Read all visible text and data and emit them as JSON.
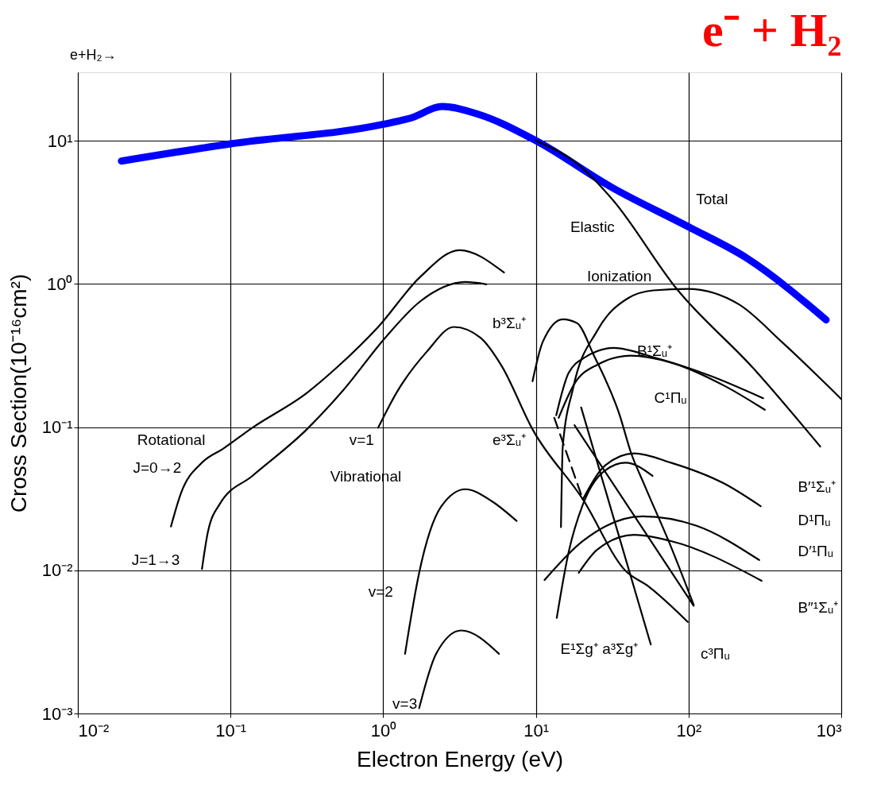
{
  "chart_data": {
    "type": "line",
    "title": "e⁻ + H₂",
    "xlabel": "Electron Energy (eV)",
    "ylabel": "Cross Section(10⁻¹⁶cm²)",
    "log": "xy",
    "grid": true,
    "xlim": [
      0.01,
      1000
    ],
    "ylim": [
      0.001,
      30
    ],
    "xticks": [
      {
        "value": 0.01,
        "label": "10⁻²"
      },
      {
        "value": 0.1,
        "label": "10⁻¹"
      },
      {
        "value": 1,
        "label": "10⁰"
      },
      {
        "value": 10,
        "label": "10¹"
      },
      {
        "value": 100,
        "label": "10²"
      },
      {
        "value": 1000,
        "label": "10³"
      }
    ],
    "yticks": [
      {
        "value": 0.001,
        "label": "10⁻³"
      },
      {
        "value": 0.01,
        "label": "10⁻²"
      },
      {
        "value": 0.1,
        "label": "10⁻¹"
      },
      {
        "value": 1,
        "label": "10⁰"
      },
      {
        "value": 10,
        "label": "10¹"
      }
    ],
    "series": [
      {
        "color": "#0000ff",
        "x": [
          0.0193,
          0.1,
          1,
          1.52,
          2.43,
          4.18,
          10,
          31.6,
          100,
          239,
          796
        ],
        "values": [
          7.2,
          9.5,
          13,
          14.4,
          17.3,
          15.3,
          10,
          4.7,
          2.5,
          1.52,
          0.56
        ]
      },
      {
        "color": "#000000",
        "x": [
          10,
          19,
          31.6,
          83.8,
          265,
          729
        ],
        "values": [
          10,
          6.8,
          3.9,
          0.92,
          0.258,
          0.0731
        ]
      },
      {
        "color": "#000000",
        "x": [
          14.6,
          15.0,
          17.5,
          25.2,
          40.2,
          58.7,
          98.8,
          214,
          407,
          1000
        ],
        "values": [
          0.02,
          0.0731,
          0.185,
          0.47,
          0.794,
          0.9,
          0.922,
          0.718,
          0.394,
          0.157
        ]
      },
      {
        "color": "#000000",
        "x": [
          0.0407,
          0.0474,
          0.065,
          0.0893,
          0.139,
          0.316,
          0.492,
          0.927,
          1.75,
          3.16,
          6.18
        ],
        "values": [
          0.0202,
          0.0346,
          0.0564,
          0.0705,
          0.0989,
          0.173,
          0.258,
          0.5,
          1.12,
          1.72,
          1.2
        ]
      },
      {
        "color": "#000000",
        "x": [
          0.065,
          0.0711,
          0.085,
          0.139,
          0.316,
          0.545,
          1.03,
          1.75,
          3.45,
          4.74
        ],
        "values": [
          0.0102,
          0.0185,
          0.029,
          0.0456,
          0.0964,
          0.18,
          0.42,
          0.755,
          1.03,
          0.993
        ]
      },
      {
        "color": "#000000",
        "x": [
          0.927,
          1.22,
          1.93,
          2.9,
          4.34,
          5.96,
          9.51,
          20.3,
          38.7,
          54.5,
          98.8
        ],
        "values": [
          0.0989,
          0.173,
          0.336,
          0.5,
          0.42,
          0.268,
          0.0964,
          0.0313,
          0.0099,
          0.00774,
          0.00436
        ]
      },
      {
        "color": "#000000",
        "x": [
          1.39,
          1.72,
          2.39,
          3.45,
          5.18,
          7.48
        ],
        "values": [
          0.00261,
          0.0096,
          0.0277,
          0.0368,
          0.0302,
          0.0221
        ]
      },
      {
        "color": "#000000",
        "x": [
          1.72,
          2.22,
          3.24,
          5.73
        ],
        "values": [
          0.00109,
          0.00261,
          0.0038,
          0.00261
        ]
      },
      {
        "color": "#000000",
        "x": [
          9.51,
          11.1,
          15.0,
          18.6,
          23.9,
          35.4,
          41.8,
          51.8,
          76.7,
          108
        ],
        "values": [
          0.209,
          0.394,
          0.566,
          0.532,
          0.319,
          0.121,
          0.0671,
          0.0387,
          0.0146,
          0.00574
        ]
      },
      {
        "color": "#000000",
        "x": [
          13.6,
          16.4,
          21.1,
          32.4,
          58.7,
          139,
          308
        ],
        "values": [
          0.121,
          0.239,
          0.308,
          0.357,
          0.308,
          0.228,
          0.159
        ]
      },
      {
        "color": "#000000",
        "x": [
          14.1,
          17.9,
          25.2,
          41.8,
          76.7,
          172,
          316
        ],
        "values": [
          0.116,
          0.201,
          0.272,
          0.315,
          0.282,
          0.194,
          0.132
        ]
      },
      {
        "color": "#000000",
        "x": [
          19.8,
          56.6
        ],
        "values": [
          0.137,
          0.00303
        ]
      },
      {
        "color": "#000000",
        "x": [
          17.9,
          108
        ],
        "values": [
          0.103,
          0.00566
        ]
      },
      {
        "color": "#000000",
        "line_style": "dashed",
        "x": [
          13.2,
          20.3
        ],
        "values": [
          0.116,
          0.0313
        ]
      },
      {
        "color": "#000000",
        "x": [
          20.3,
          28.6,
          44.0,
          76.7,
          172,
          297
        ],
        "values": [
          0.0313,
          0.0542,
          0.0655,
          0.0564,
          0.0402,
          0.028
        ]
      },
      {
        "color": "#000000",
        "x": [
          13.7,
          16.4,
          20.3,
          27.2,
          38.7,
          58.1
        ],
        "values": [
          0.00465,
          0.0134,
          0.0287,
          0.0479,
          0.0564,
          0.0456
        ]
      },
      {
        "color": "#000000",
        "x": [
          11.4,
          20.3,
          49.9,
          112,
          290
        ],
        "values": [
          0.00855,
          0.016,
          0.0238,
          0.0205,
          0.0118
        ]
      },
      {
        "color": "#000000",
        "x": [
          19.1,
          25.2,
          44.0,
          76.7,
          301
        ],
        "values": [
          0.0096,
          0.0139,
          0.0177,
          0.016,
          0.00845
        ]
      }
    ],
    "annotations": [
      "e+H₂→",
      "Total",
      "Elastic",
      "Ionization",
      "b³Σᵤ⁺",
      "B¹Σᵤ⁺",
      "C¹Πᵤ",
      "e³Σᵤ⁺",
      "v=1",
      "Rotational",
      "J=0→2",
      "Vibrational",
      "J=1→3",
      "v=2",
      "v=3",
      "B′¹Σᵤ⁺",
      "D¹Πᵤ",
      "D′¹Πᵤ",
      "B″¹Σᵤ⁺",
      "E¹Σg⁺ a³Σg⁺",
      "c³Πᵤ"
    ]
  }
}
